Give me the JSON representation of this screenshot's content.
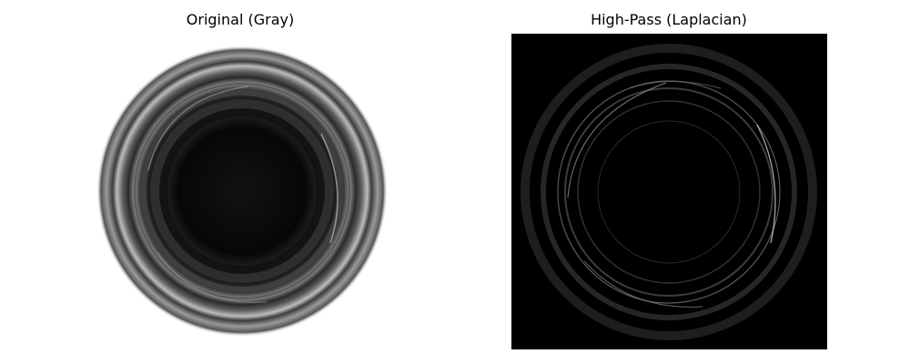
{
  "figure": {
    "panels": [
      {
        "title": "Original (Gray)",
        "image": "grayscale photo of a circular bottle/jar opening viewed from above"
      },
      {
        "title": "High-Pass (Laplacian)",
        "image": "laplacian edge map of the same circular opening"
      }
    ]
  },
  "colors": {
    "background": "#ffffff",
    "text": "#000000",
    "laplacian_background": "#000000"
  }
}
